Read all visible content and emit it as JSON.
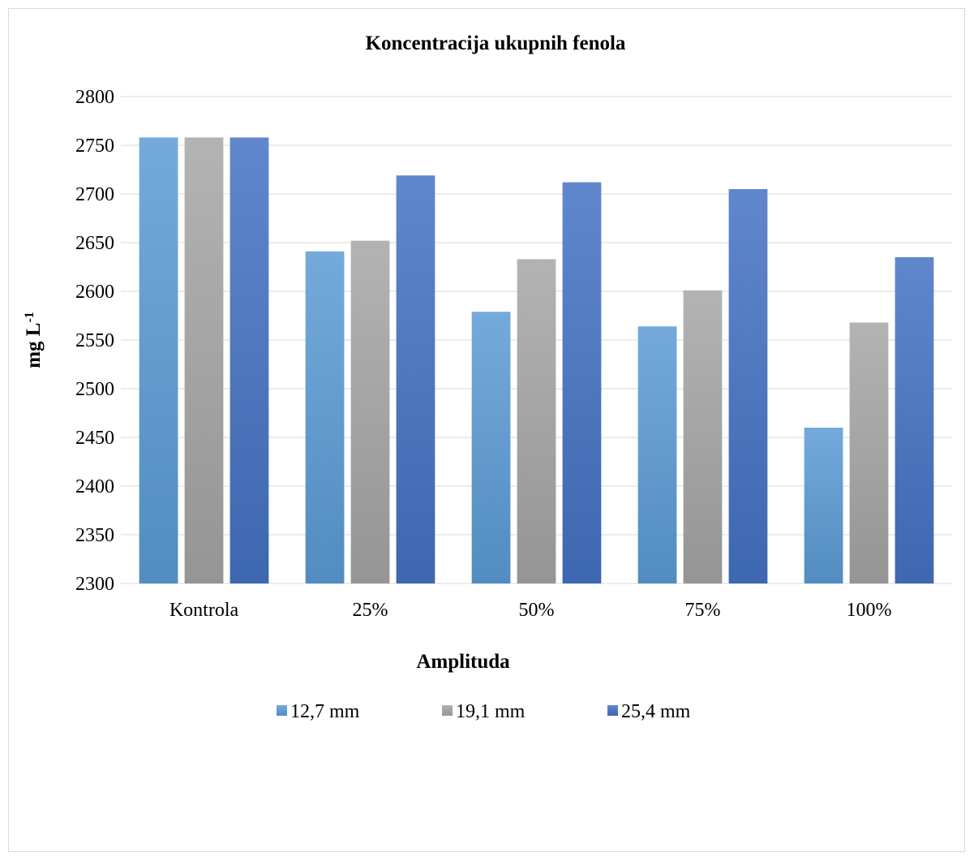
{
  "chart_data": {
    "type": "bar",
    "title": "Koncentracija ukupnih fenola",
    "xlabel": "Amplituda",
    "ylabel_main": "mg L",
    "ylabel_sup": "-1",
    "categories": [
      "Kontrola",
      "25%",
      "50%",
      "75%",
      "100%"
    ],
    "ylim": [
      2300,
      2800
    ],
    "yticks": [
      2300,
      2350,
      2400,
      2450,
      2500,
      2550,
      2600,
      2650,
      2700,
      2750,
      2800
    ],
    "grid": true,
    "legend_position": "bottom",
    "series": [
      {
        "name": "12,7 mm",
        "color": "#5b9bd5",
        "values": [
          2758,
          2641,
          2579,
          2564,
          2460
        ]
      },
      {
        "name": "19,1 mm",
        "color": "#a5a5a5",
        "values": [
          2758,
          2652,
          2633,
          2601,
          2568
        ]
      },
      {
        "name": "25,4 mm",
        "color": "#4472c4",
        "values": [
          2758,
          2719,
          2712,
          2705,
          2635
        ]
      }
    ]
  }
}
